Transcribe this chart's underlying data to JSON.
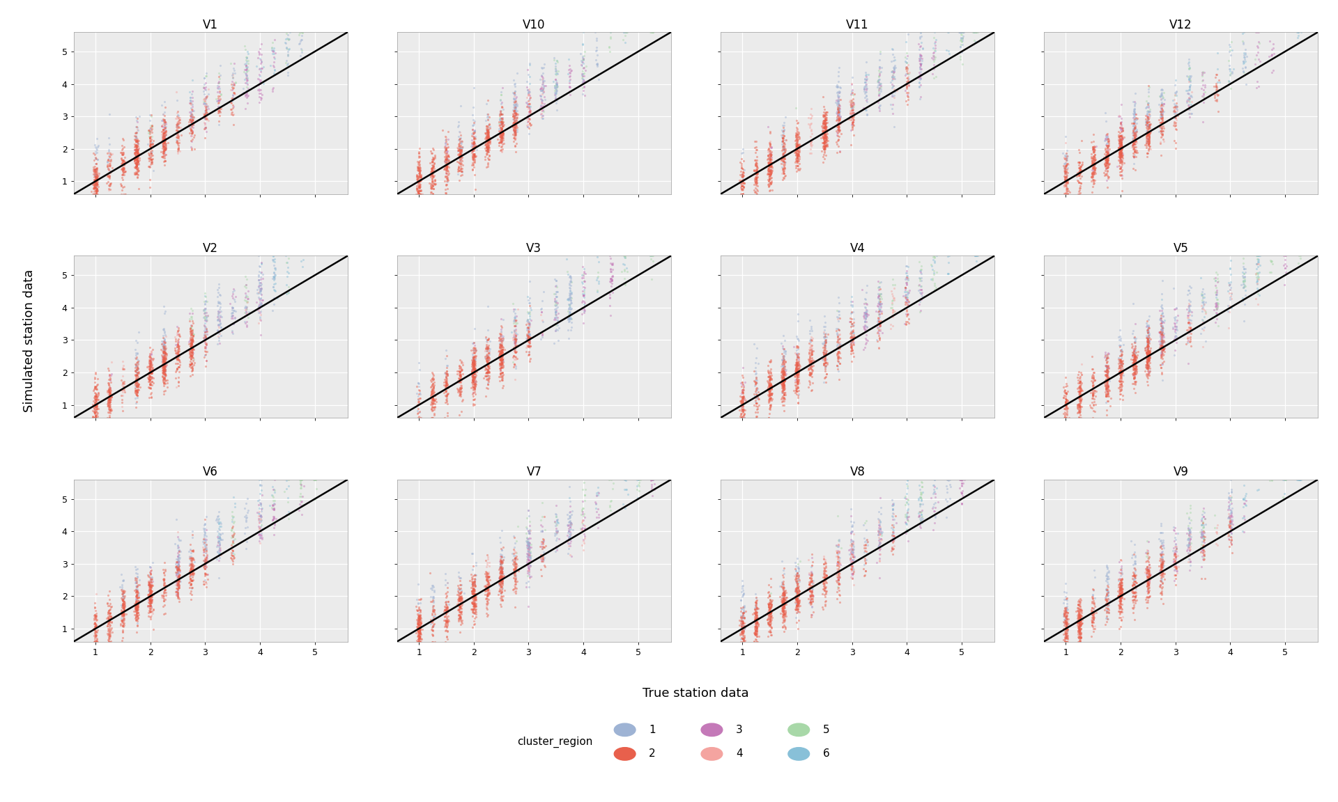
{
  "panels": [
    "V1",
    "V10",
    "V11",
    "V12",
    "V2",
    "V3",
    "V4",
    "V5",
    "V6",
    "V7",
    "V8",
    "V9"
  ],
  "grid_shape": [
    3,
    4
  ],
  "xlim": [
    0.6,
    5.6
  ],
  "ylim": [
    0.6,
    5.6
  ],
  "xticks": [
    1,
    2,
    3,
    4,
    5
  ],
  "yticks": [
    1,
    2,
    3,
    4,
    5
  ],
  "xlabel": "True station data",
  "ylabel": "Simulated station data",
  "facecolor": "#ebebeb",
  "seed": 42,
  "cluster_palette": {
    "1": "#9eb3d4",
    "2": "#e8604c",
    "3": "#c479b8",
    "4": "#f4a4a0",
    "5": "#a8d8a8",
    "6": "#88c0d8"
  },
  "legend_colors": {
    "1": "#9eb3d4",
    "2": "#e8604c",
    "3": "#c479b8",
    "4": "#f4a4a0",
    "5": "#a8d8a8",
    "6": "#88c0d8"
  },
  "legend_row1": [
    "1",
    "3",
    "5"
  ],
  "legend_row2": [
    "2",
    "4",
    "6"
  ],
  "cluster_obs_x": {
    "1": [
      1.0,
      1.5,
      2.0,
      2.5,
      3.0
    ],
    "2": [
      1.0,
      1.2,
      1.5,
      1.8,
      2.0,
      2.2,
      2.5,
      2.8,
      3.0
    ],
    "3": [
      1.5,
      2.0,
      2.5,
      3.0,
      3.5,
      4.0
    ],
    "4": [
      2.0,
      2.5,
      3.0,
      3.5,
      4.0
    ],
    "5": [
      2.5,
      3.0,
      3.5,
      4.0,
      4.5,
      5.0
    ],
    "6": [
      3.0,
      3.5,
      4.0,
      4.5,
      5.0
    ]
  }
}
